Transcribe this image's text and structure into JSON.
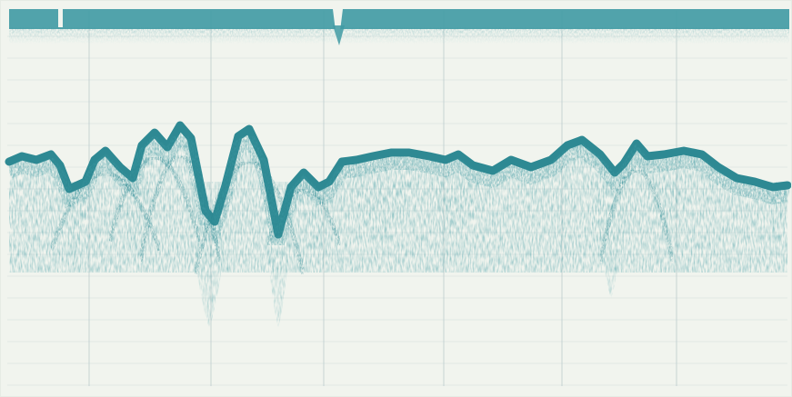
{
  "image": {
    "subject": "echo-sounder-recording",
    "colors": {
      "paper": "#f1f4ee",
      "trace": "#3f9aa3",
      "trace_dark": "#2e8993",
      "grid": "#c9d6d6"
    }
  }
}
